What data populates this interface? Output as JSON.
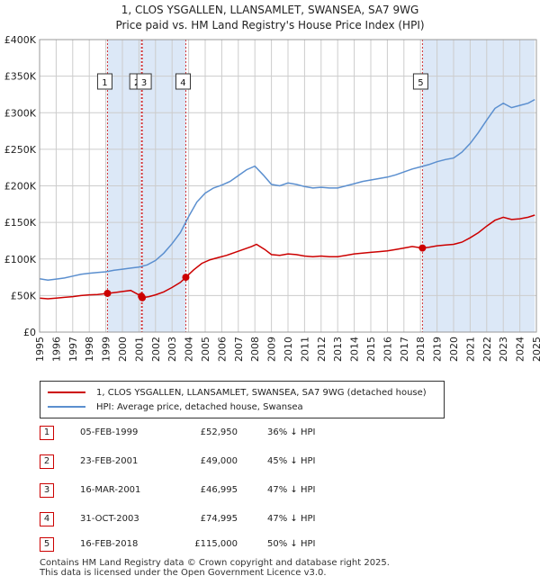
{
  "title_line1": "1, CLOS YSGALLEN, LLANSAMLET, SWANSEA, SA7 9WG",
  "title_line2": "Price paid vs. HM Land Registry's House Price Index (HPI)",
  "colors": {
    "property": "#cc0000",
    "hpi": "#5b8fcf",
    "shade": "#dce8f7",
    "grid": "#cccccc",
    "marker_border": "#cc0000"
  },
  "legend": {
    "property_label": "1, CLOS YSGALLEN, LLANSAMLET, SWANSEA, SA7 9WG (detached house)",
    "hpi_label": "HPI: Average price, detached house, Swansea"
  },
  "sales": [
    {
      "num": "1",
      "date": "05-FEB-1999",
      "price": "£52,950",
      "hpi": "36% ↓ HPI"
    },
    {
      "num": "2",
      "date": "23-FEB-2001",
      "price": "£49,000",
      "hpi": "45% ↓ HPI"
    },
    {
      "num": "3",
      "date": "16-MAR-2001",
      "price": "£46,995",
      "hpi": "47% ↓ HPI"
    },
    {
      "num": "4",
      "date": "31-OCT-2003",
      "price": "£74,995",
      "hpi": "47% ↓ HPI"
    },
    {
      "num": "5",
      "date": "16-FEB-2018",
      "price": "£115,000",
      "hpi": "50% ↓ HPI"
    }
  ],
  "footer_line1": "Contains HM Land Registry data © Crown copyright and database right 2025.",
  "footer_line2": "This data is licensed under the Open Government Licence v3.0.",
  "chart_data": {
    "type": "line",
    "title": "1, CLOS YSGALLEN, LLANSAMLET, SWANSEA, SA7 9WG — Price paid vs. HM Land Registry's House Price Index (HPI)",
    "xlabel": "",
    "ylabel": "",
    "xlim": [
      1995,
      2025
    ],
    "ylim": [
      0,
      400000
    ],
    "y_ticks": [
      0,
      50000,
      100000,
      150000,
      200000,
      250000,
      300000,
      350000,
      400000
    ],
    "y_tick_labels": [
      "£0",
      "£50K",
      "£100K",
      "£150K",
      "£200K",
      "£250K",
      "£300K",
      "£350K",
      "£400K"
    ],
    "x_ticks": [
      1995,
      1996,
      1997,
      1998,
      1999,
      2000,
      2001,
      2002,
      2003,
      2004,
      2005,
      2006,
      2007,
      2008,
      2009,
      2010,
      2011,
      2012,
      2013,
      2014,
      2015,
      2016,
      2017,
      2018,
      2019,
      2020,
      2021,
      2022,
      2023,
      2024,
      2025
    ],
    "grid": true,
    "shaded_periods": [
      [
        1999.1,
        2001.15
      ],
      [
        2001.2,
        2003.83
      ],
      [
        2018.12,
        2024.9
      ]
    ],
    "series": [
      {
        "name": "HPI: Average price, detached house, Swansea",
        "points": [
          [
            1995,
            73000
          ],
          [
            1995.5,
            71000
          ],
          [
            1996,
            72500
          ],
          [
            1996.5,
            74000
          ],
          [
            1997,
            76500
          ],
          [
            1997.5,
            79000
          ],
          [
            1998,
            80500
          ],
          [
            1998.5,
            81500
          ],
          [
            1999,
            82500
          ],
          [
            1999.5,
            84500
          ],
          [
            2000,
            86000
          ],
          [
            2000.5,
            87500
          ],
          [
            2001,
            89000
          ],
          [
            2001.5,
            92000
          ],
          [
            2002,
            98000
          ],
          [
            2002.5,
            108000
          ],
          [
            2003,
            121000
          ],
          [
            2003.5,
            136000
          ],
          [
            2004,
            158000
          ],
          [
            2004.5,
            178000
          ],
          [
            2005,
            190000
          ],
          [
            2005.5,
            197000
          ],
          [
            2006,
            201000
          ],
          [
            2006.5,
            206000
          ],
          [
            2007,
            214000
          ],
          [
            2007.5,
            222000
          ],
          [
            2008,
            227000
          ],
          [
            2008.5,
            215000
          ],
          [
            2009,
            202000
          ],
          [
            2009.5,
            200000
          ],
          [
            2010,
            204000
          ],
          [
            2010.5,
            202000
          ],
          [
            2011,
            199000
          ],
          [
            2011.5,
            197000
          ],
          [
            2012,
            198000
          ],
          [
            2012.5,
            197000
          ],
          [
            2013,
            197000
          ],
          [
            2013.5,
            200000
          ],
          [
            2014,
            203000
          ],
          [
            2014.5,
            206000
          ],
          [
            2015,
            208000
          ],
          [
            2015.5,
            210000
          ],
          [
            2016,
            212000
          ],
          [
            2016.5,
            215000
          ],
          [
            2017,
            219000
          ],
          [
            2017.5,
            223000
          ],
          [
            2018,
            226000
          ],
          [
            2018.5,
            229000
          ],
          [
            2019,
            233000
          ],
          [
            2019.5,
            236000
          ],
          [
            2020,
            238000
          ],
          [
            2020.5,
            246000
          ],
          [
            2021,
            258000
          ],
          [
            2021.5,
            273000
          ],
          [
            2022,
            290000
          ],
          [
            2022.5,
            306000
          ],
          [
            2023,
            313000
          ],
          [
            2023.5,
            307000
          ],
          [
            2024,
            310000
          ],
          [
            2024.5,
            313000
          ],
          [
            2024.9,
            318000
          ]
        ]
      },
      {
        "name": "1, CLOS YSGALLEN, LLANSAMLET, SWANSEA, SA7 9WG (detached house)",
        "points": [
          [
            1995,
            46500
          ],
          [
            1995.5,
            45500
          ],
          [
            1996,
            46500
          ],
          [
            1996.5,
            47500
          ],
          [
            1997,
            48500
          ],
          [
            1997.5,
            50000
          ],
          [
            1998,
            51000
          ],
          [
            1998.5,
            51500
          ],
          [
            1999.1,
            52950
          ],
          [
            1999.5,
            54000
          ],
          [
            2000,
            55500
          ],
          [
            2000.5,
            57000
          ],
          [
            2001.15,
            49000
          ],
          [
            2001.2,
            46995
          ],
          [
            2001.6,
            48500
          ],
          [
            2002,
            51000
          ],
          [
            2002.5,
            55000
          ],
          [
            2003,
            61000
          ],
          [
            2003.5,
            68000
          ],
          [
            2003.83,
            74995
          ],
          [
            2004.3,
            85000
          ],
          [
            2004.8,
            94000
          ],
          [
            2005.3,
            99000
          ],
          [
            2005.8,
            102000
          ],
          [
            2006.3,
            105000
          ],
          [
            2006.8,
            109000
          ],
          [
            2007.3,
            113000
          ],
          [
            2007.8,
            117000
          ],
          [
            2008.1,
            120000
          ],
          [
            2008.6,
            113000
          ],
          [
            2009,
            106000
          ],
          [
            2009.5,
            105000
          ],
          [
            2010,
            107000
          ],
          [
            2010.5,
            106000
          ],
          [
            2011,
            104000
          ],
          [
            2011.5,
            103000
          ],
          [
            2012,
            104000
          ],
          [
            2012.5,
            103000
          ],
          [
            2013,
            103000
          ],
          [
            2013.5,
            105000
          ],
          [
            2014,
            107000
          ],
          [
            2014.5,
            108000
          ],
          [
            2015,
            109000
          ],
          [
            2015.5,
            110000
          ],
          [
            2016,
            111000
          ],
          [
            2016.5,
            113000
          ],
          [
            2017,
            115000
          ],
          [
            2017.5,
            117000
          ],
          [
            2018.12,
            115000
          ],
          [
            2018.5,
            116000
          ],
          [
            2019,
            118000
          ],
          [
            2019.5,
            119000
          ],
          [
            2020,
            120000
          ],
          [
            2020.5,
            123000
          ],
          [
            2021,
            129000
          ],
          [
            2021.5,
            136000
          ],
          [
            2022,
            145000
          ],
          [
            2022.5,
            153000
          ],
          [
            2023,
            157000
          ],
          [
            2023.5,
            154000
          ],
          [
            2024,
            155000
          ],
          [
            2024.5,
            157000
          ],
          [
            2024.9,
            160000
          ]
        ]
      }
    ],
    "sale_markers": [
      {
        "num": "1",
        "x": 1999.1,
        "y": 52950
      },
      {
        "num": "2",
        "x": 2001.15,
        "y": 49000
      },
      {
        "num": "3",
        "x": 2001.2,
        "y": 46995
      },
      {
        "num": "4",
        "x": 2003.83,
        "y": 74995
      },
      {
        "num": "5",
        "x": 2018.12,
        "y": 115000
      }
    ]
  }
}
